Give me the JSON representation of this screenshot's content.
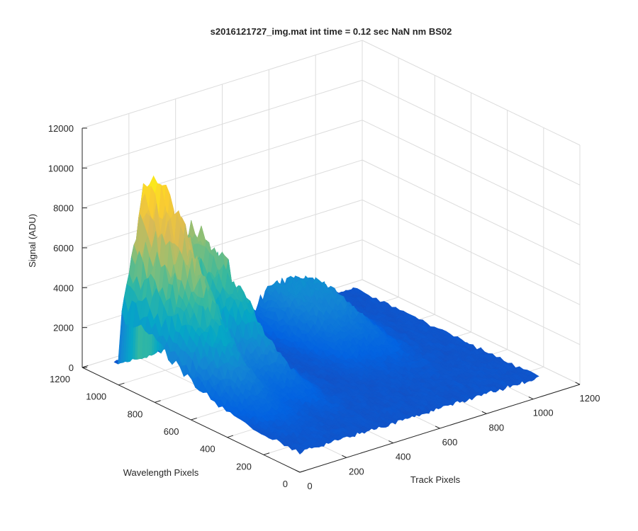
{
  "chart_data": {
    "type": "surface",
    "title": "s2016121727_img.mat int time = 0.12 sec  NaN nm BS02",
    "xlabel": "Track Pixels",
    "ylabel": "Wavelength Pixels",
    "zlabel": "Signal (ADU)",
    "xlim": [
      0,
      1200
    ],
    "ylim": [
      0,
      1200
    ],
    "zlim": [
      0,
      12000
    ],
    "xticks": [
      "0",
      "200",
      "400",
      "600",
      "800",
      "1000",
      "1200"
    ],
    "yticks": [
      "0",
      "200",
      "400",
      "600",
      "800",
      "1000",
      "1200"
    ],
    "zticks": [
      "0",
      "2000",
      "4000",
      "6000",
      "8000",
      "10000",
      "12000"
    ],
    "grid": true,
    "colormap": "parula",
    "colors": [
      "#352a87",
      "#0363e1",
      "#1485d4",
      "#06a7c6",
      "#38b99e",
      "#92bf73",
      "#d9ba56",
      "#fcce2e",
      "#f9fb0e"
    ],
    "baseline": 1000,
    "x_range": [
      0,
      1024
    ],
    "y_range": [
      0,
      1024
    ],
    "peaks": [
      {
        "track_center": 110,
        "track_width": 70,
        "wavelength_center": 980,
        "wavelength_width": 280,
        "amplitude": 8700
      },
      {
        "track_center": 300,
        "track_width": 50,
        "wavelength_center": 950,
        "wavelength_width": 260,
        "amplitude": 5400
      },
      {
        "track_center": 640,
        "track_width": 60,
        "wavelength_center": 900,
        "wavelength_width": 220,
        "amplitude": 1700
      },
      {
        "track_center": 760,
        "track_width": 55,
        "wavelength_center": 870,
        "wavelength_width": 220,
        "amplitude": 1600
      }
    ]
  }
}
